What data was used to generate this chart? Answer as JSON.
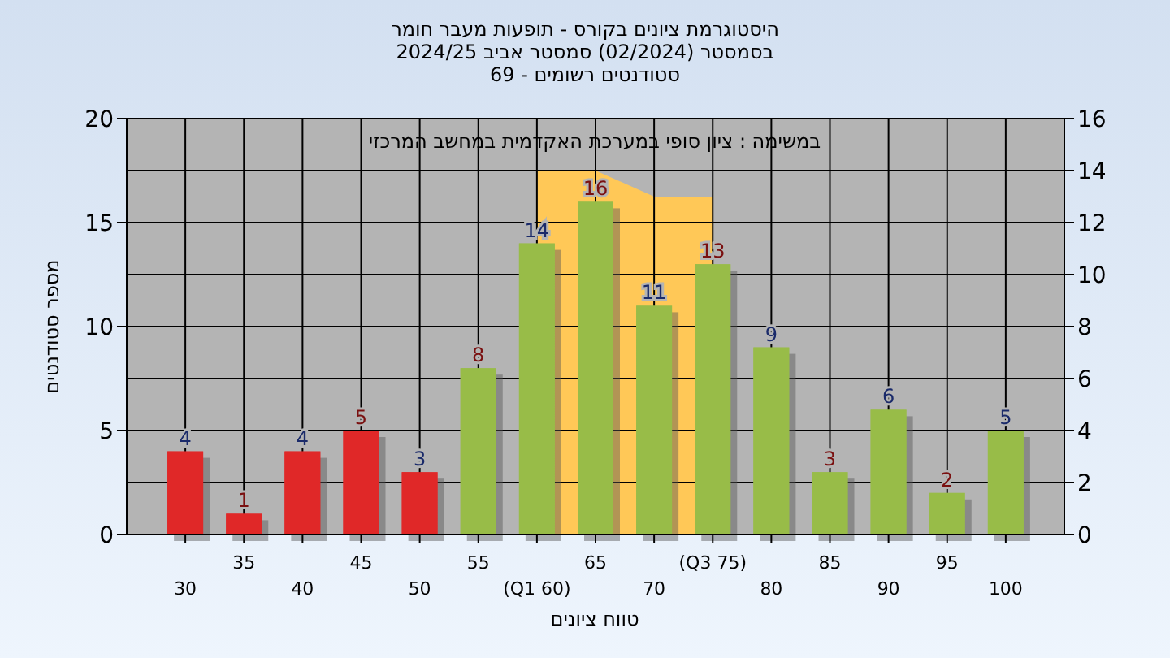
{
  "chart_data": {
    "type": "bar",
    "title": "היסטוגרמת ציונים בקורס - תופעות מעבר חומר",
    "subtitle": "בסמסטר  (02/2024)  סמסטר אביב 2024/25\nסטודנטים רשומים - 69",
    "xlabel": "טווח ציונים",
    "ylabel": "מספר סטודנטים",
    "annotations": [
      "במשימה : ציון סופי במערכת האקדמית במחשב המרכזי"
    ],
    "categories": [
      "30",
      "35",
      "40",
      "45",
      "50",
      "55",
      "(Q1 60)",
      "65",
      "70",
      "(Q3 75)",
      "80",
      "85",
      "90",
      "95",
      "100"
    ],
    "series": [
      {
        "type": "area",
        "axis": "y2",
        "color": "#ffc857",
        "values": [
          null,
          null,
          null,
          null,
          null,
          null,
          14,
          14,
          13,
          13,
          null,
          null,
          null,
          null,
          null
        ]
      },
      {
        "colors": [
          "#e02828",
          "#e02828",
          "#e02828",
          "#e02828",
          "#e02828",
          "#98bc48",
          "#98bc48",
          "#98bc48",
          "#98bc48",
          "#98bc48",
          "#98bc48",
          "#98bc48",
          "#98bc48",
          "#98bc48",
          "#98bc48"
        ],
        "values": [
          4,
          1,
          4,
          5,
          3,
          8,
          14,
          16,
          11,
          13,
          9,
          3,
          6,
          2,
          5
        ],
        "value_labels": [
          "4",
          "1",
          "4",
          "5",
          "3",
          "8",
          "14",
          "16",
          "11",
          "13",
          "9",
          "3",
          "6",
          "2",
          "5"
        ]
      }
    ],
    "ylim": [
      0,
      20
    ],
    "yticks": [
      0,
      5,
      10,
      15,
      20
    ],
    "y2lim": [
      0,
      16
    ],
    "y2ticks": [
      0,
      2,
      4,
      6,
      8,
      10,
      12,
      14,
      16
    ],
    "grid": true
  }
}
